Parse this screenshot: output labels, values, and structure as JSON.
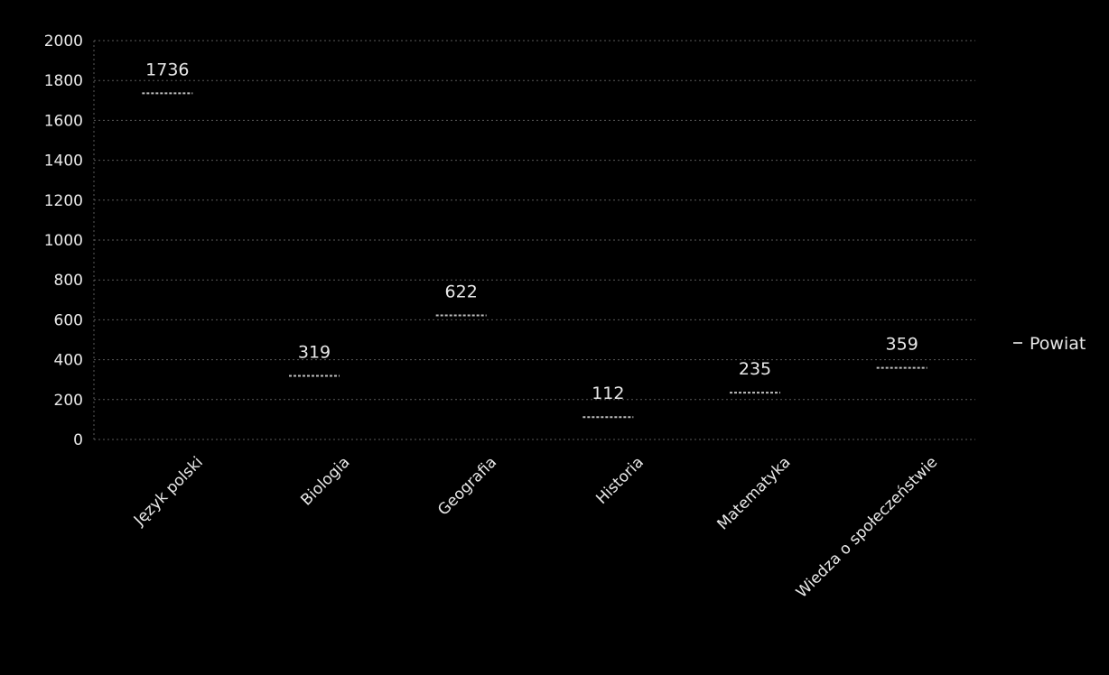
{
  "chart_data": {
    "type": "line",
    "categories": [
      "Język polski",
      "Biologia",
      "Geografia",
      "Historia",
      "Matematyka",
      "Wiedza o społeczeństwie"
    ],
    "series": [
      {
        "name": "Powiat",
        "values": [
          1736,
          319,
          622,
          112,
          235,
          359
        ]
      }
    ],
    "data_labels": [
      "1736",
      "319",
      "622",
      "112",
      "235",
      "359"
    ],
    "title": "",
    "xlabel": "",
    "ylabel": "",
    "ylim": [
      0,
      2000
    ],
    "yticks": [
      0,
      200,
      400,
      600,
      800,
      1000,
      1200,
      1400,
      1600,
      1800,
      2000
    ],
    "ytick_labels": [
      "0",
      "200",
      "400",
      "600",
      "800",
      "1000",
      "1200",
      "1400",
      "1600",
      "1800",
      "2000"
    ],
    "grid": true,
    "legend": {
      "placement": "right",
      "label": "Powiat"
    },
    "colors": {
      "background": "#000000",
      "text": "#e8e8e8",
      "grid": "#5a5a5a",
      "series": "#bdbdbd"
    }
  }
}
